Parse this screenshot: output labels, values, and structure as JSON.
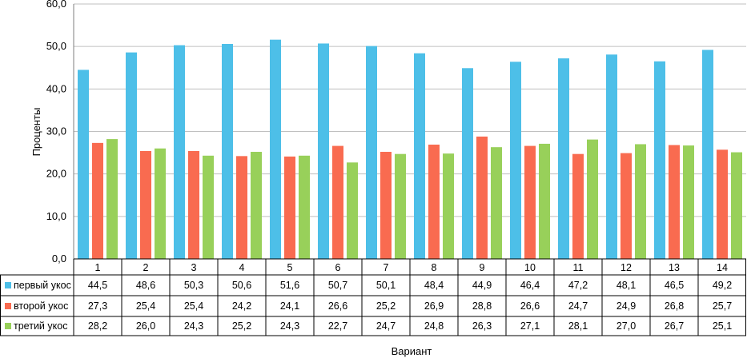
{
  "chart_data": {
    "type": "bar",
    "title": "",
    "xlabel": "Вариант",
    "ylabel": "Проценты",
    "ylim": [
      0,
      60
    ],
    "yticks": [
      "0,0",
      "10,0",
      "20,0",
      "30,0",
      "40,0",
      "50,0",
      "60,0"
    ],
    "grid": true,
    "legend": "data-table-left",
    "categories": [
      "1",
      "2",
      "3",
      "4",
      "5",
      "6",
      "7",
      "8",
      "9",
      "10",
      "11",
      "12",
      "13",
      "14"
    ],
    "series": [
      {
        "name": "первый укос",
        "color": "#4dbfe8",
        "values": [
          44.5,
          48.6,
          50.3,
          50.6,
          51.6,
          50.7,
          50.1,
          48.4,
          44.9,
          46.4,
          47.2,
          48.1,
          46.5,
          49.2
        ],
        "labels": [
          "44,5",
          "48,6",
          "50,3",
          "50,6",
          "51,6",
          "50,7",
          "50,1",
          "48,4",
          "44,9",
          "46,4",
          "47,2",
          "48,1",
          "46,5",
          "49,2"
        ]
      },
      {
        "name": "второй укос",
        "color": "#f96b50",
        "values": [
          27.3,
          25.4,
          25.4,
          24.2,
          24.1,
          26.6,
          25.2,
          26.9,
          28.8,
          26.6,
          24.7,
          24.9,
          26.8,
          25.7
        ],
        "labels": [
          "27,3",
          "25,4",
          "25,4",
          "24,2",
          "24,1",
          "26,6",
          "25,2",
          "26,9",
          "28,8",
          "26,6",
          "24,7",
          "24,9",
          "26,8",
          "25,7"
        ]
      },
      {
        "name": "третий укос",
        "color": "#98d05a",
        "values": [
          28.2,
          26.0,
          24.3,
          25.2,
          24.3,
          22.7,
          24.7,
          24.8,
          26.3,
          27.1,
          28.1,
          27.0,
          26.7,
          25.1
        ],
        "labels": [
          "28,2",
          "26,0",
          "24,3",
          "25,2",
          "24,3",
          "22,7",
          "24,7",
          "24,8",
          "26,3",
          "27,1",
          "28,1",
          "27,0",
          "26,7",
          "25,1"
        ]
      }
    ]
  }
}
